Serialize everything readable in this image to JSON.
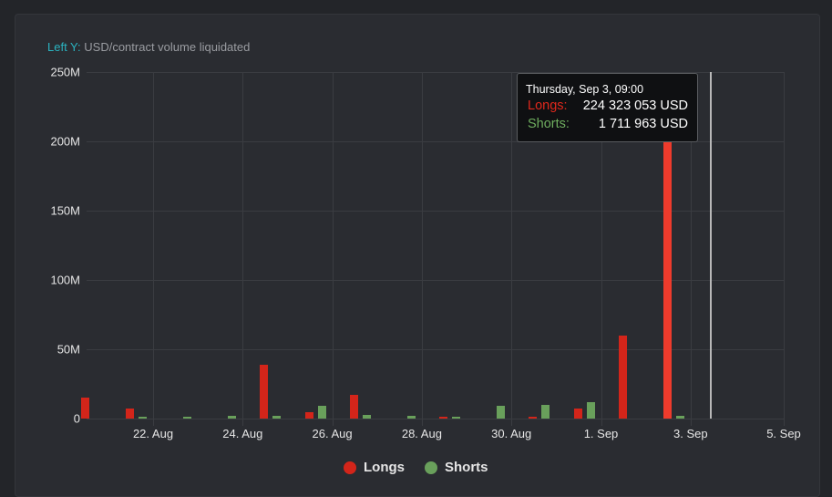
{
  "chart_data": {
    "type": "bar",
    "title": "",
    "axis_title_label": "Left Y:",
    "axis_title_text": "USD/contract volume liquidated",
    "xlabel": "",
    "ylabel": "USD/contract volume liquidated",
    "ylim": [
      0,
      250000000
    ],
    "y_ticks": [
      "0",
      "50M",
      "100M",
      "150M",
      "200M",
      "250M"
    ],
    "x_ticks": [
      "22. Aug",
      "24. Aug",
      "26. Aug",
      "28. Aug",
      "30. Aug",
      "1. Sep",
      "3. Sep",
      "5. Sep"
    ],
    "grid": true,
    "legend_position": "bottom",
    "categories": [
      "21 Aug",
      "22 Aug",
      "23 Aug",
      "24 Aug",
      "25 Aug",
      "26 Aug",
      "27 Aug",
      "28 Aug",
      "29 Aug",
      "30 Aug",
      "31 Aug",
      "1 Sep",
      "2 Sep",
      "3 Sep"
    ],
    "series": [
      {
        "name": "Longs",
        "color": "#d3251a",
        "values": [
          15000000,
          7500000,
          0,
          0,
          39000000,
          4500000,
          17000000,
          0,
          1000000,
          0,
          1000000,
          7000000,
          60000000,
          224323053
        ]
      },
      {
        "name": "Shorts",
        "color": "#69a05b",
        "values": [
          0,
          1000000,
          1000000,
          2000000,
          2000000,
          9000000,
          2500000,
          2000000,
          1000000,
          9000000,
          10000000,
          12000000,
          0,
          1711963
        ]
      }
    ]
  },
  "tooltip": {
    "title": "Thursday, Sep 3, 09:00",
    "longs_label": "Longs:",
    "longs_value": "224 323 053 USD",
    "shorts_label": "Shorts:",
    "shorts_value": "1 711 963 USD"
  },
  "legend": {
    "longs": "Longs",
    "shorts": "Shorts"
  },
  "colors": {
    "longs": "#d3251a",
    "shorts": "#69a05b",
    "accent": "#2ab3c0"
  }
}
